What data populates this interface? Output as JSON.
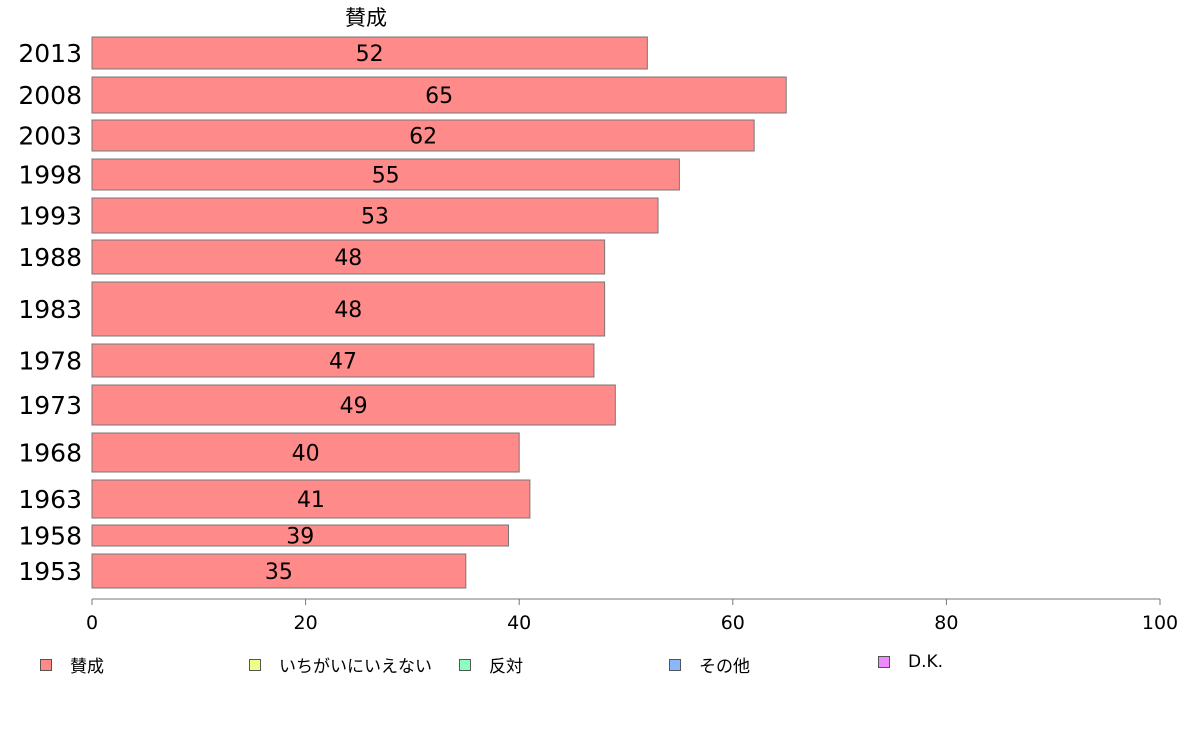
{
  "chart_data": {
    "type": "bar",
    "orientation": "horizontal",
    "series_label": "賛成",
    "categories": [
      "2013",
      "2008",
      "2003",
      "1998",
      "1993",
      "1988",
      "1983",
      "1978",
      "1973",
      "1968",
      "1963",
      "1958",
      "1953"
    ],
    "series": [
      {
        "name": "賛成",
        "values": [
          52,
          65,
          62,
          55,
          53,
          48,
          48,
          47,
          49,
          40,
          41,
          39,
          35
        ]
      }
    ],
    "xlim": [
      0,
      100
    ],
    "xticks": [
      0,
      20,
      40,
      60,
      80,
      100
    ],
    "grid": false,
    "legend_position": "bottom",
    "legend": [
      {
        "label": "賛成",
        "color": "#ff8a8a"
      },
      {
        "label": "いちがいにいえない",
        "color": "#eeff8a"
      },
      {
        "label": "反対",
        "color": "#8affc0"
      },
      {
        "label": "その他",
        "color": "#8ab8ff"
      },
      {
        "label": "D.K.",
        "color": "#ee8aff"
      }
    ],
    "bar_color": "#ff8a8a"
  }
}
